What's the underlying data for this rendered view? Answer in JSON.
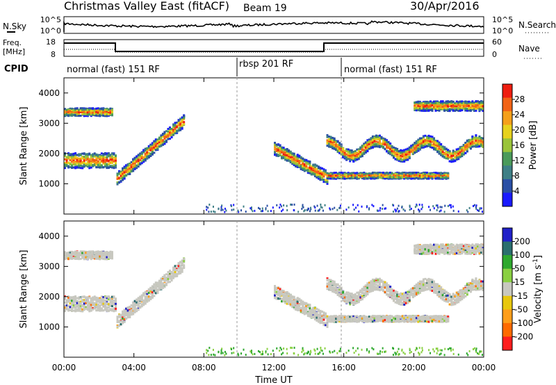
{
  "header": {
    "station": "Christmas Valley East (fitACF)",
    "beam": "Beam 19",
    "date": "30/Apr/2016"
  },
  "summary_panels": {
    "nsky_label": "N.Sky",
    "nsearch_label": "N.Search",
    "noise_ticks": [
      "10^5",
      "10^0"
    ],
    "freq_label": "Freq.",
    "freq_unit": "[MHz]",
    "freq_ticks": [
      "18",
      "8"
    ],
    "nave_label": "Nave",
    "nave_ticks": [
      "60",
      "0"
    ],
    "cpid_label": "CPID",
    "cpid_segments": [
      "normal (fast) 151 RF",
      "rbsp 201 RF",
      "normal (fast) 151 RF"
    ]
  },
  "colors": {
    "power_scale": [
      "#1a1aff",
      "#2a4fa5",
      "#3e7f86",
      "#4a9a5a",
      "#9ac43a",
      "#e7d21d",
      "#f5a01a",
      "#f26316",
      "#ef1e10"
    ],
    "velocity_scale": [
      "#ff1d1d",
      "#ff6a00",
      "#ff9e1a",
      "#e8c70e",
      "#c8c8c0",
      "#8ad042",
      "#2ea82e",
      "#2a6e6e",
      "#2020c8"
    ]
  },
  "chart_data": [
    {
      "type": "heatmap",
      "panel": "power",
      "ylabel": "Slant Range [km]",
      "yticks": [
        "4000",
        "3000",
        "2000",
        "1000"
      ],
      "ylim": [
        0,
        4500
      ],
      "xlim": [
        "00:00",
        "24:00"
      ],
      "colorbar_label": "Power [dB]",
      "colorbar_ticks": [
        "28",
        "24",
        "20",
        "16",
        "12",
        "8",
        "4"
      ],
      "colorbar_range": [
        0,
        32
      ]
    },
    {
      "type": "heatmap",
      "panel": "velocity",
      "ylabel": "Slant Range [km]",
      "yticks": [
        "4000",
        "3000",
        "2000",
        "1000"
      ],
      "ylim": [
        0,
        4500
      ],
      "xlim": [
        "00:00",
        "24:00"
      ],
      "colorbar_label": "Velocity [m s^-1]",
      "colorbar_ticks": [
        "200",
        "100",
        "50",
        "15",
        "-15",
        "-50",
        "-100",
        "-200"
      ]
    }
  ],
  "xaxis": {
    "label": "Time UT",
    "ticks": [
      "00:00",
      "04:00",
      "08:00",
      "12:00",
      "16:00",
      "20:00",
      "00:00"
    ]
  }
}
